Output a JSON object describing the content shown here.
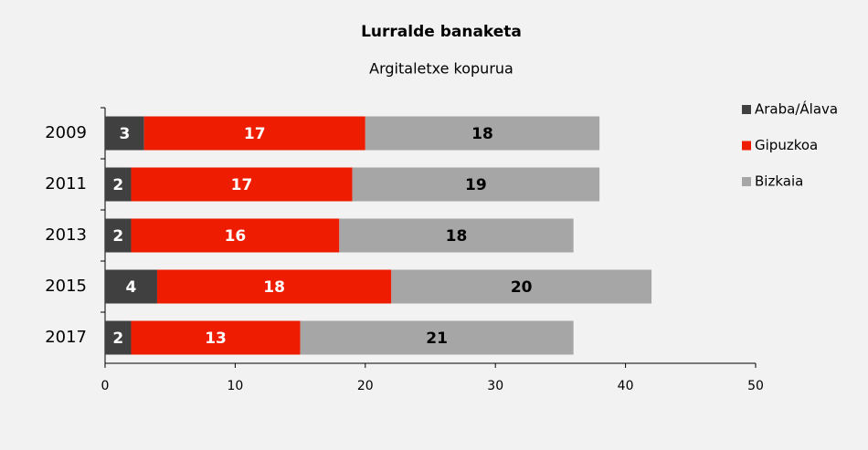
{
  "chart_data": {
    "type": "bar",
    "orientation": "horizontal",
    "stacked": true,
    "title": "Lurralde banaketa",
    "subtitle": "Argitaletxe kopurua",
    "categories": [
      "2009",
      "2011",
      "2013",
      "2015",
      "2017"
    ],
    "series": [
      {
        "name": "Araba/Álava",
        "color": "#404040",
        "values": [
          3,
          2,
          2,
          4,
          2
        ]
      },
      {
        "name": "Gipuzkoa",
        "color": "#ee1c00",
        "values": [
          17,
          17,
          16,
          18,
          13
        ]
      },
      {
        "name": "Bizkaia",
        "color": "#a6a6a6",
        "values": [
          18,
          19,
          18,
          20,
          21
        ]
      }
    ],
    "xlim": [
      0,
      50
    ],
    "xticks": [
      0,
      10,
      20,
      30,
      40,
      50
    ],
    "grid": false,
    "legend": "right"
  }
}
